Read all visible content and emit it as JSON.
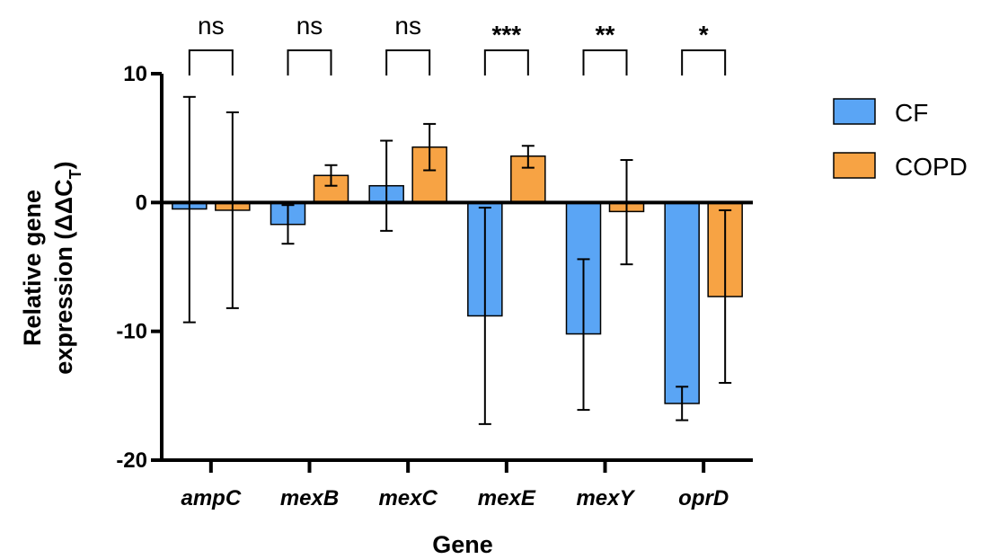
{
  "chart_data": {
    "type": "bar",
    "xlabel": "Gene",
    "ylabel_main": "Relative gene",
    "ylabel_line2": "expression (ΔΔC",
    "ylabel_sub": "T",
    "ylabel_close": ")",
    "ylim": [
      -20,
      10
    ],
    "yticks": [
      10,
      0,
      -10,
      -20
    ],
    "ytick_labels": [
      "10",
      "0",
      "-10",
      "-20"
    ],
    "categories": [
      "ampC",
      "mexB",
      "mexC",
      "mexE",
      "mexY",
      "oprD"
    ],
    "significance": [
      "ns",
      "ns",
      "ns",
      "***",
      "**",
      "*"
    ],
    "series": [
      {
        "name": "CF",
        "color": "#5aa5f5",
        "values": [
          -0.5,
          -1.7,
          1.3,
          -8.8,
          -10.2,
          -15.6
        ],
        "error_low": [
          -9.3,
          -3.2,
          -2.2,
          -17.2,
          -16.1,
          -16.9
        ],
        "error_high": [
          8.2,
          -0.2,
          4.8,
          -0.4,
          -4.4,
          -14.3
        ]
      },
      {
        "name": "COPD",
        "color": "#f7a344",
        "values": [
          -0.6,
          2.1,
          4.3,
          3.6,
          -0.7,
          -7.3
        ],
        "error_low": [
          -8.2,
          1.3,
          2.5,
          2.7,
          -4.8,
          -14.0
        ],
        "error_high": [
          7.0,
          2.9,
          6.1,
          4.4,
          3.3,
          -0.6
        ]
      }
    ],
    "legend_position": "top-right",
    "grid": false
  }
}
